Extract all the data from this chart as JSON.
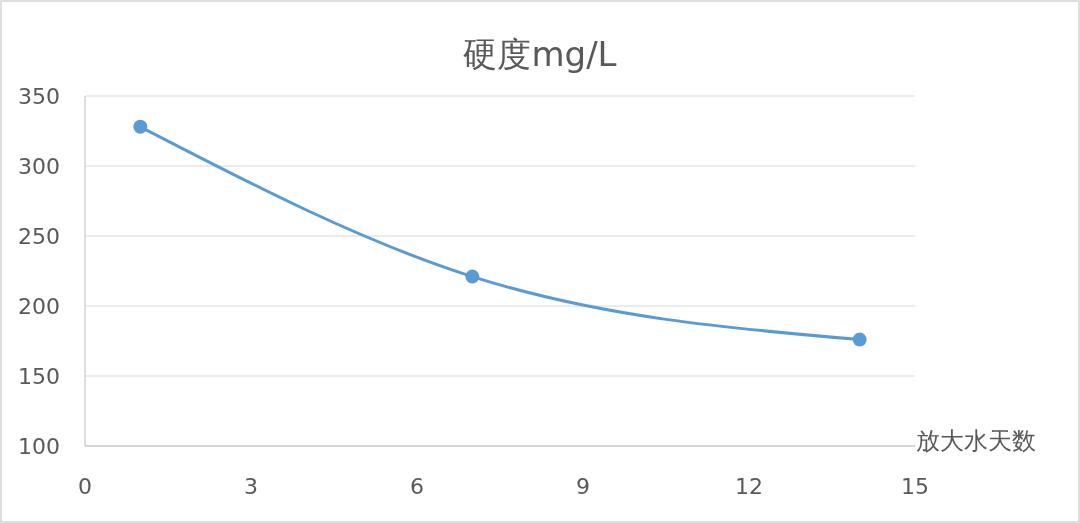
{
  "chart_data": {
    "type": "line",
    "title": "硬度mg/L",
    "xlabel": "放大水天数",
    "x": [
      1,
      7,
      14
    ],
    "series": [
      {
        "color": "#5b9bd5",
        "values": [
          328,
          221,
          176
        ]
      }
    ],
    "xlim": [
      0,
      15
    ],
    "xticks": [
      0,
      3,
      6,
      9,
      12,
      15
    ],
    "ylim": [
      100,
      350
    ],
    "yticks": [
      100,
      150,
      200,
      250,
      300,
      350
    ],
    "grid": "y",
    "marker": "circle",
    "line_style": "solid"
  }
}
